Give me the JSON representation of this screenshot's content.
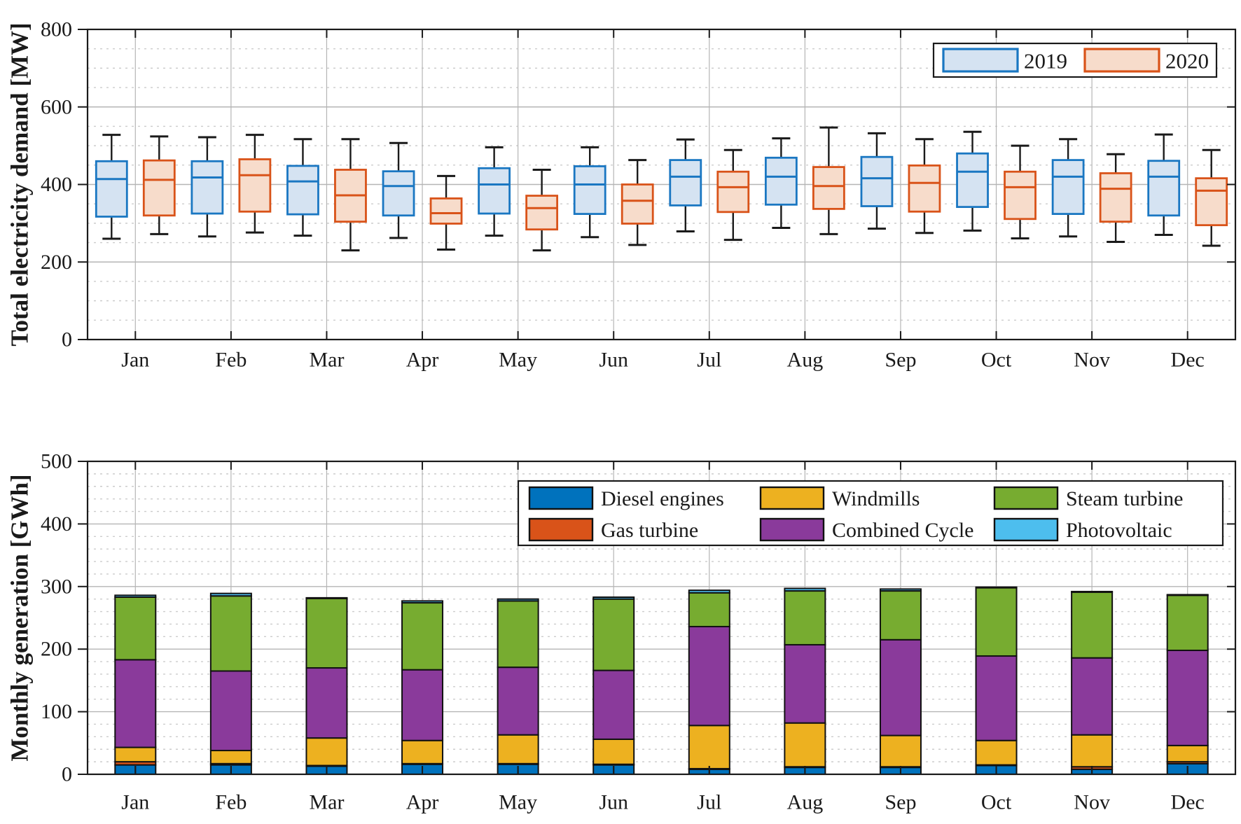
{
  "figure": {
    "background": "#ffffff",
    "frame_color": "#1a1a1a",
    "major_grid_color": "#b5b5b5",
    "minor_grid_color": "#cccccc"
  },
  "chart_data": [
    {
      "type": "boxplot",
      "ylabel": "Total electricity demand [MW]",
      "ylim": [
        0,
        800
      ],
      "yticks": [
        0,
        200,
        400,
        600,
        800
      ],
      "minor_step": 50,
      "grid": "on",
      "legend_position": "top-right-inside",
      "categories": [
        "Jan",
        "Feb",
        "Mar",
        "Apr",
        "May",
        "Jun",
        "Jul",
        "Aug",
        "Sep",
        "Oct",
        "Nov",
        "Dec"
      ],
      "series": [
        {
          "name": "2019",
          "fill": "#d5e3f2",
          "edge": "#1a77c2",
          "boxes_order": [
            "whisker_low",
            "q1",
            "median",
            "q3",
            "whisker_high"
          ],
          "boxes": [
            [
              260,
              317,
              414,
              460,
              528
            ],
            [
              266,
              325,
              418,
              460,
              522
            ],
            [
              268,
              323,
              408,
              448,
              517
            ],
            [
              262,
              320,
              396,
              434,
              507
            ],
            [
              268,
              325,
              400,
              442,
              496
            ],
            [
              264,
              324,
              400,
              447,
              496
            ],
            [
              279,
              346,
              420,
              463,
              516
            ],
            [
              288,
              348,
              420,
              469,
              519
            ],
            [
              286,
              344,
              416,
              471,
              532
            ],
            [
              281,
              342,
              433,
              480,
              536
            ],
            [
              266,
              324,
              420,
              463,
              517
            ],
            [
              270,
              320,
              420,
              461,
              529
            ]
          ]
        },
        {
          "name": "2020",
          "fill": "#f7dccb",
          "edge": "#d95319",
          "boxes_order": [
            "whisker_low",
            "q1",
            "median",
            "q3",
            "whisker_high"
          ],
          "boxes": [
            [
              272,
              320,
              412,
              462,
              524
            ],
            [
              276,
              330,
              424,
              465,
              528
            ],
            [
              230,
              304,
              372,
              438,
              517
            ],
            [
              232,
              299,
              326,
              364,
              422
            ],
            [
              230,
              284,
              339,
              371,
              438
            ],
            [
              244,
              299,
              358,
              400,
              463
            ],
            [
              257,
              329,
              393,
              433,
              489
            ],
            [
              272,
              337,
              396,
              445,
              547
            ],
            [
              275,
              330,
              404,
              449,
              517
            ],
            [
              261,
              311,
              393,
              433,
              500
            ],
            [
              252,
              304,
              389,
              429,
              478
            ],
            [
              242,
              295,
              384,
              416,
              489
            ]
          ]
        }
      ]
    },
    {
      "type": "bar-stacked",
      "ylabel": "Monthly generation [GWh]",
      "ylim": [
        0,
        500
      ],
      "yticks": [
        0,
        100,
        200,
        300,
        400,
        500
      ],
      "minor_step": 20,
      "grid": "on",
      "legend_position": "top-inside",
      "categories": [
        "Jan",
        "Feb",
        "Mar",
        "Apr",
        "May",
        "Jun",
        "Jul",
        "Aug",
        "Sep",
        "Oct",
        "Nov",
        "Dec"
      ],
      "series": [
        {
          "name": "Diesel engines",
          "color": "#0072bd",
          "values": [
            15,
            15,
            13,
            16,
            16,
            15,
            8,
            11,
            11,
            14,
            8,
            17
          ]
        },
        {
          "name": "Gas turbine",
          "color": "#d95319",
          "values": [
            5,
            2,
            1,
            1,
            1,
            1,
            1,
            1,
            1,
            1,
            4,
            3
          ]
        },
        {
          "name": "Windmills",
          "color": "#edb120",
          "values": [
            23,
            21,
            44,
            37,
            46,
            40,
            69,
            70,
            50,
            39,
            51,
            26
          ]
        },
        {
          "name": "Combined Cycle",
          "color": "#8a3a9b",
          "values": [
            140,
            127,
            112,
            113,
            108,
            110,
            158,
            125,
            153,
            135,
            123,
            152
          ]
        },
        {
          "name": "Steam turbine",
          "color": "#77ac30",
          "values": [
            100,
            120,
            111,
            107,
            106,
            114,
            54,
            86,
            78,
            109,
            105,
            88
          ]
        },
        {
          "name": "Photovoltaic",
          "color": "#4dbeee",
          "values": [
            3,
            4,
            1,
            3,
            3,
            3,
            4,
            4,
            3,
            1,
            1,
            1
          ]
        }
      ],
      "legend_rows": [
        [
          "Diesel engines",
          "Windmills",
          "Steam turbine"
        ],
        [
          "Gas turbine",
          "Combined Cycle",
          "Photovoltaic"
        ]
      ]
    }
  ]
}
